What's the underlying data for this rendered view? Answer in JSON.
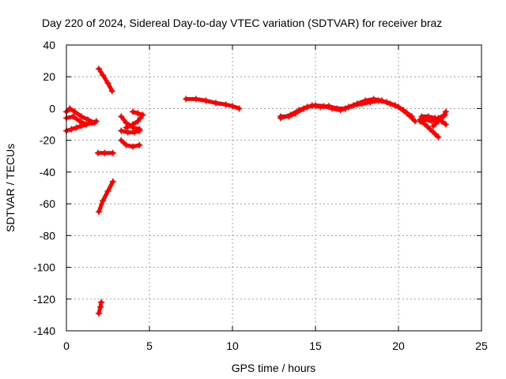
{
  "chart_data": {
    "type": "scatter",
    "title": "Day 220 of 2024, Sidereal Day-to-day VTEC variation (SDTVAR) for receiver braz",
    "xlabel": "GPS time / hours",
    "ylabel": "SDTVAR / TECUs",
    "xlim": [
      0,
      25
    ],
    "ylim": [
      -140,
      40
    ],
    "xticks": [
      0,
      5,
      10,
      15,
      20,
      25
    ],
    "yticks": [
      -140,
      -120,
      -100,
      -80,
      -60,
      -40,
      -20,
      0,
      20,
      40
    ],
    "grid": true,
    "series": [
      {
        "name": "SDTVAR",
        "color": "#ff0000",
        "segments": [
          [
            [
              0.0,
              -2
            ],
            [
              0.2,
              0
            ],
            [
              0.5,
              -2
            ],
            [
              0.9,
              -5
            ],
            [
              1.3,
              -7
            ],
            [
              1.7,
              -9
            ]
          ],
          [
            [
              0.0,
              -6
            ],
            [
              0.4,
              -5
            ],
            [
              0.8,
              -8
            ],
            [
              1.2,
              -10
            ],
            [
              1.6,
              -9
            ],
            [
              1.8,
              -8
            ]
          ],
          [
            [
              0.0,
              -14
            ],
            [
              0.3,
              -13
            ],
            [
              0.6,
              -12
            ],
            [
              0.9,
              -11
            ],
            [
              1.2,
              -10
            ],
            [
              1.5,
              -9
            ]
          ],
          [
            [
              1.95,
              25
            ],
            [
              2.2,
              21
            ],
            [
              2.5,
              16
            ],
            [
              2.75,
              11
            ]
          ],
          [
            [
              1.9,
              -28
            ],
            [
              2.3,
              -28
            ],
            [
              2.8,
              -28
            ]
          ],
          [
            [
              1.95,
              -65
            ],
            [
              2.2,
              -58
            ],
            [
              2.5,
              -52
            ],
            [
              2.8,
              -46
            ]
          ],
          [
            [
              1.95,
              -129
            ],
            [
              2.05,
              -125
            ],
            [
              2.1,
              -122
            ]
          ],
          [
            [
              3.3,
              -5
            ],
            [
              3.6,
              -9
            ],
            [
              4.0,
              -12
            ],
            [
              4.4,
              -13
            ]
          ],
          [
            [
              3.3,
              -14
            ],
            [
              3.7,
              -15
            ],
            [
              4.1,
              -15
            ],
            [
              4.4,
              -14
            ]
          ],
          [
            [
              3.3,
              -20
            ],
            [
              3.6,
              -23
            ],
            [
              4.0,
              -24
            ],
            [
              4.4,
              -23
            ]
          ],
          [
            [
              3.6,
              -12
            ],
            [
              4.0,
              -10
            ],
            [
              4.3,
              -8
            ],
            [
              4.45,
              -6
            ]
          ],
          [
            [
              4.0,
              -2
            ],
            [
              4.3,
              -3
            ],
            [
              4.6,
              -4
            ]
          ],
          [
            [
              7.2,
              6
            ],
            [
              7.8,
              6
            ],
            [
              8.4,
              5
            ],
            [
              9.0,
              3.5
            ],
            [
              9.6,
              2.5
            ],
            [
              10.0,
              1.5
            ],
            [
              10.4,
              0
            ]
          ],
          [
            [
              12.9,
              -6
            ],
            [
              13.5,
              -4
            ],
            [
              14.0,
              -1
            ],
            [
              14.5,
              1
            ],
            [
              15.0,
              2
            ],
            [
              15.5,
              1.5
            ],
            [
              16.0,
              0
            ],
            [
              16.5,
              -1
            ],
            [
              17.0,
              1
            ],
            [
              17.5,
              3
            ],
            [
              18.0,
              5
            ],
            [
              18.5,
              6
            ],
            [
              19.0,
              5
            ],
            [
              19.5,
              3
            ],
            [
              20.0,
              1
            ],
            [
              20.5,
              -3
            ],
            [
              21.0,
              -8
            ]
          ],
          [
            [
              12.9,
              -5
            ],
            [
              13.4,
              -5
            ],
            [
              13.8,
              -3
            ],
            [
              14.3,
              0
            ],
            [
              14.8,
              2
            ],
            [
              15.3,
              1
            ],
            [
              15.8,
              1.5
            ],
            [
              16.3,
              0
            ],
            [
              16.8,
              0
            ],
            [
              17.3,
              2
            ],
            [
              17.8,
              3
            ],
            [
              18.3,
              4
            ],
            [
              18.8,
              5
            ],
            [
              19.3,
              4
            ],
            [
              19.8,
              2
            ],
            [
              20.3,
              -1
            ],
            [
              20.8,
              -5
            ]
          ],
          [
            [
              21.3,
              -7
            ],
            [
              21.6,
              -7
            ],
            [
              22.0,
              -8
            ],
            [
              22.4,
              -6
            ],
            [
              22.8,
              -4
            ]
          ],
          [
            [
              21.3,
              -8
            ],
            [
              21.6,
              -10
            ],
            [
              21.9,
              -13
            ],
            [
              22.2,
              -16
            ],
            [
              22.4,
              -18
            ]
          ],
          [
            [
              21.4,
              -5
            ],
            [
              21.8,
              -5
            ],
            [
              22.2,
              -6
            ],
            [
              22.6,
              -8
            ],
            [
              22.85,
              -10
            ]
          ],
          [
            [
              22.1,
              -11
            ],
            [
              22.4,
              -8
            ],
            [
              22.7,
              -5
            ],
            [
              22.85,
              -2
            ]
          ]
        ]
      }
    ]
  }
}
